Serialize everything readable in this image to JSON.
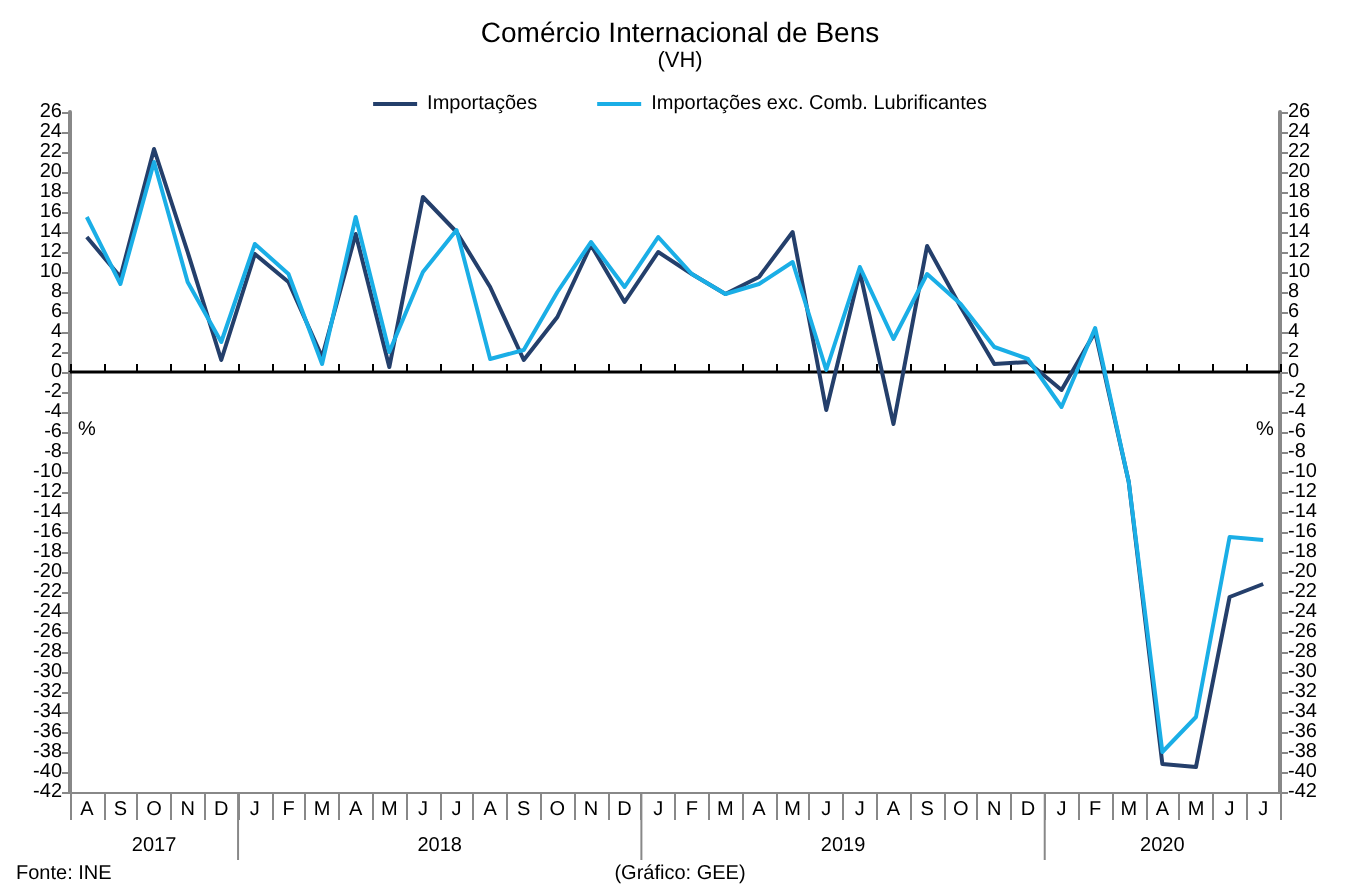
{
  "chart_data": {
    "type": "line",
    "title": "Comércio Internacional de Bens",
    "subtitle": "(VH)",
    "ylabel": "%",
    "y2label": "%",
    "categories": [
      "A",
      "S",
      "O",
      "N",
      "D",
      "J",
      "F",
      "M",
      "A",
      "M",
      "J",
      "J",
      "A",
      "S",
      "O",
      "N",
      "D",
      "J",
      "F",
      "M",
      "A",
      "M",
      "J",
      "J",
      "A",
      "S",
      "O",
      "N",
      "D",
      "J",
      "F",
      "M",
      "A",
      "M",
      "J",
      "J"
    ],
    "series": [
      {
        "name": "Importações",
        "color": "#243f6b",
        "values": [
          13.5,
          9.5,
          22.3,
          12,
          1.2,
          11.8,
          9,
          1.5,
          13.8,
          0.5,
          17.5,
          14,
          8.5,
          1.2,
          5.5,
          12.7,
          7,
          12,
          9.8,
          7.8,
          9.5,
          14,
          -3.8,
          10,
          -5.2,
          12.6,
          6.5,
          0.8,
          1,
          -1.8,
          4,
          -11,
          -39.2,
          -39.5,
          -22.5,
          -21.2
        ]
      },
      {
        "name": "Importações exc. Comb. Lubrificantes",
        "color": "#1aaee6",
        "values": [
          15.5,
          8.8,
          21,
          9,
          3,
          12.8,
          9.8,
          0.8,
          15.5,
          2,
          10,
          14.2,
          1.3,
          2.2,
          8,
          13,
          8.5,
          13.5,
          9.8,
          7.8,
          8.8,
          11,
          0.2,
          10.5,
          3.3,
          9.8,
          6.8,
          2.5,
          1.3,
          -3.5,
          4.4,
          -11,
          -38,
          -34.5,
          -16.5,
          -16.8
        ]
      }
    ],
    "ylim": [
      -42,
      26
    ],
    "yticks": [
      -42,
      -40,
      -38,
      -36,
      -34,
      -32,
      -30,
      -28,
      -26,
      -24,
      -22,
      -20,
      -18,
      -16,
      -14,
      -12,
      -10,
      -8,
      -6,
      -4,
      -2,
      0,
      2,
      4,
      6,
      8,
      10,
      12,
      14,
      16,
      18,
      20,
      22,
      24,
      26
    ],
    "y2lim": [
      -42,
      26
    ],
    "y2ticks": [
      -42,
      -40,
      -38,
      -36,
      -34,
      -32,
      -30,
      -28,
      -26,
      -24,
      -22,
      -20,
      -18,
      -16,
      -14,
      -12,
      -10,
      -8,
      -6,
      -4,
      -2,
      0,
      2,
      4,
      6,
      8,
      10,
      12,
      14,
      16,
      18,
      20,
      22,
      24,
      26
    ],
    "annotations": [
      "2017",
      "2018",
      "2019",
      "2020",
      "Fonte: INE",
      "(Gráfico: GEE)"
    ],
    "legend": "top",
    "marker": "none",
    "line_style": "solid"
  }
}
